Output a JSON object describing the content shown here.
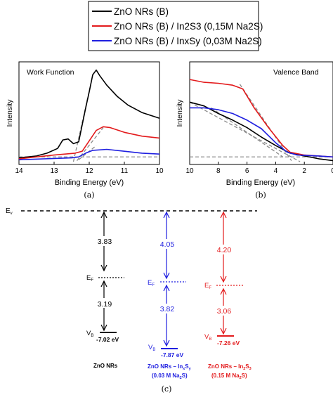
{
  "legend": {
    "entries": [
      {
        "label": "ZnO NRs (B)",
        "color": "#000000"
      },
      {
        "label": "ZnO NRs (B) / In2S3 (0,15M Na2S)",
        "color": "#e31a1c"
      },
      {
        "label": "ZnO NRs (B) / InxSy (0,03M Na2S)",
        "color": "#1f1fe0"
      }
    ]
  },
  "chart_data": [
    {
      "type": "line",
      "panel_label": "(a)",
      "title": "Work Function",
      "xlabel": "Binding Energy (eV)",
      "ylabel": "Intensity",
      "xlim": [
        14,
        10
      ],
      "x_ticks": [
        "14",
        "13",
        "12",
        "11",
        "10"
      ],
      "series": [
        {
          "name": "ZnO NRs (B)",
          "color": "#000000",
          "points": [
            [
              14,
              0.07
            ],
            [
              13.5,
              0.09
            ],
            [
              13.2,
              0.12
            ],
            [
              12.9,
              0.17
            ],
            [
              12.75,
              0.26
            ],
            [
              12.6,
              0.27
            ],
            [
              12.45,
              0.22
            ],
            [
              12.3,
              0.24
            ],
            [
              12.2,
              0.42
            ],
            [
              12.1,
              0.6
            ],
            [
              12.0,
              0.77
            ],
            [
              11.9,
              0.95
            ],
            [
              11.8,
              1.0
            ],
            [
              11.7,
              0.94
            ],
            [
              11.5,
              0.84
            ],
            [
              11.2,
              0.72
            ],
            [
              10.9,
              0.63
            ],
            [
              10.5,
              0.55
            ],
            [
              10.0,
              0.49
            ]
          ]
        },
        {
          "name": "ZnO NRs (B) / In2S3 (0,15M Na2S)",
          "color": "#e31a1c",
          "points": [
            [
              14,
              0.06
            ],
            [
              13.0,
              0.1
            ],
            [
              12.4,
              0.12
            ],
            [
              12.2,
              0.14
            ],
            [
              12.0,
              0.25
            ],
            [
              11.8,
              0.36
            ],
            [
              11.6,
              0.4
            ],
            [
              11.4,
              0.39
            ],
            [
              11.0,
              0.34
            ],
            [
              10.5,
              0.3
            ],
            [
              10.0,
              0.28
            ]
          ]
        },
        {
          "name": "ZnO NRs (B) / InxSy (0,03M Na2S)",
          "color": "#1f1fe0",
          "points": [
            [
              14,
              0.05
            ],
            [
              12.5,
              0.07
            ],
            [
              12.3,
              0.08
            ],
            [
              12.1,
              0.12
            ],
            [
              11.9,
              0.15
            ],
            [
              11.5,
              0.16
            ],
            [
              11.0,
              0.14
            ],
            [
              10.5,
              0.12
            ],
            [
              10.0,
              0.11
            ]
          ]
        }
      ],
      "guides": [
        [
          [
            14,
            0.08
          ],
          [
            10,
            0.08
          ]
        ],
        [
          [
            12.45,
            0.03
          ],
          [
            11.95,
            0.86
          ]
        ],
        [
          [
            12.35,
            0.04
          ],
          [
            11.6,
            0.39
          ]
        ],
        [
          [
            12.3,
            0.05
          ],
          [
            11.8,
            0.2
          ]
        ]
      ]
    },
    {
      "type": "line",
      "panel_label": "(b)",
      "title": "Valence Band",
      "xlabel": "Binding Energy (eV)",
      "ylabel": "Intensity",
      "xlim": [
        10,
        0
      ],
      "x_ticks": [
        "10",
        "8",
        "6",
        "4",
        "2",
        "0"
      ],
      "series": [
        {
          "name": "ZnO NRs (B)",
          "color": "#000000",
          "points": [
            [
              10,
              0.66
            ],
            [
              9,
              0.62
            ],
            [
              8,
              0.54
            ],
            [
              7,
              0.47
            ],
            [
              6,
              0.39
            ],
            [
              5,
              0.29
            ],
            [
              4,
              0.2
            ],
            [
              3,
              0.12
            ],
            [
              2,
              0.09
            ],
            [
              1,
              0.06
            ],
            [
              0,
              0.04
            ]
          ]
        },
        {
          "name": "ZnO NRs (B) / In2S3 (0,15M Na2S)",
          "color": "#e31a1c",
          "points": [
            [
              10,
              0.9
            ],
            [
              9,
              0.87
            ],
            [
              8,
              0.86
            ],
            [
              7,
              0.84
            ],
            [
              6.3,
              0.8
            ],
            [
              5.5,
              0.6
            ],
            [
              4.5,
              0.39
            ],
            [
              3.5,
              0.2
            ],
            [
              3,
              0.13
            ],
            [
              2,
              0.1
            ],
            [
              1,
              0.09
            ],
            [
              0,
              0.08
            ]
          ]
        },
        {
          "name": "ZnO NRs (B) / InxSy (0,03M Na2S)",
          "color": "#1f1fe0",
          "points": [
            [
              10,
              0.6
            ],
            [
              9,
              0.6
            ],
            [
              8,
              0.58
            ],
            [
              7,
              0.54
            ],
            [
              6,
              0.47
            ],
            [
              5,
              0.38
            ],
            [
              4,
              0.23
            ],
            [
              3.2,
              0.13
            ],
            [
              2.5,
              0.1
            ],
            [
              1,
              0.09
            ],
            [
              0,
              0.08
            ]
          ]
        }
      ],
      "guides": [
        [
          [
            10,
            0.08
          ],
          [
            0,
            0.08
          ]
        ],
        [
          [
            6.5,
            0.85
          ],
          [
            2.9,
            0.04
          ]
        ],
        [
          [
            10,
            0.66
          ],
          [
            2.3,
            0.03
          ]
        ],
        [
          [
            8.5,
            0.6
          ],
          [
            3.5,
            0.08
          ]
        ]
      ]
    },
    {
      "type": "diagram",
      "panel_label": "(c)",
      "vacuum_label": "Ev",
      "columns": [
        {
          "name": "ZnO NRs",
          "color": "#000000",
          "work_function": "3.83",
          "gap_to_vb": "3.19",
          "vb_value": "-7.02 eV",
          "fermi_label": "EF",
          "vb_label": "VB",
          "sample_line_2": ""
        },
        {
          "name": "ZnO NRs – InxSy",
          "sample_line_2": "(0.03 M Na2S)",
          "color": "#1f1fe0",
          "work_function": "4.05",
          "gap_to_vb": "3.82",
          "vb_value": "-7.87 eV",
          "fermi_label": "EF",
          "vb_label": "VB"
        },
        {
          "name": "ZnO NRs – In2S3",
          "sample_line_2": "(0.15 M Na2S)",
          "color": "#e31a1c",
          "work_function": "4.20",
          "gap_to_vb": "3.06",
          "vb_value": "-7.26 eV",
          "fermi_label": "EF",
          "vb_label": "VB"
        }
      ]
    }
  ]
}
